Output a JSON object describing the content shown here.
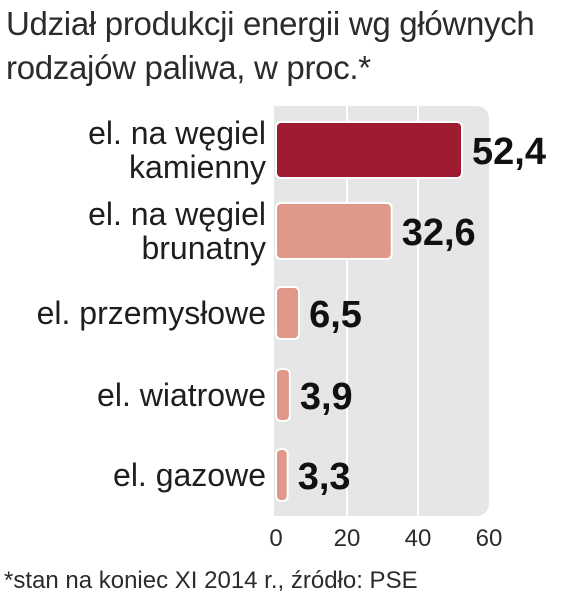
{
  "chart_data": {
    "type": "bar",
    "orientation": "horizontal",
    "title": "Udział produkcji energii wg głównych rodzajów paliwa, w proc.*",
    "categories": [
      [
        "el. na węgiel",
        "kamienny"
      ],
      [
        "el. na węgiel",
        "brunatny"
      ],
      [
        "el. przemysłowe"
      ],
      [
        "el. wiatrowe"
      ],
      [
        "el. gazowe"
      ]
    ],
    "values": [
      52.4,
      32.6,
      6.5,
      3.9,
      3.3
    ],
    "value_labels": [
      "52,4",
      "32,6",
      "6,5",
      "3,9",
      "3,3"
    ],
    "bar_colors": [
      "#9e1b32",
      "#e0988a",
      "#e0988a",
      "#e0988a",
      "#e0988a"
    ],
    "xlim": [
      0,
      60
    ],
    "xticks": [
      0,
      20,
      40,
      60
    ],
    "grid": true,
    "footnote": "*stan na koniec XI 2014 r., źródło: PSE"
  },
  "colors": {
    "plot_background": "#e6e6e6",
    "grid": "#ffffff"
  }
}
